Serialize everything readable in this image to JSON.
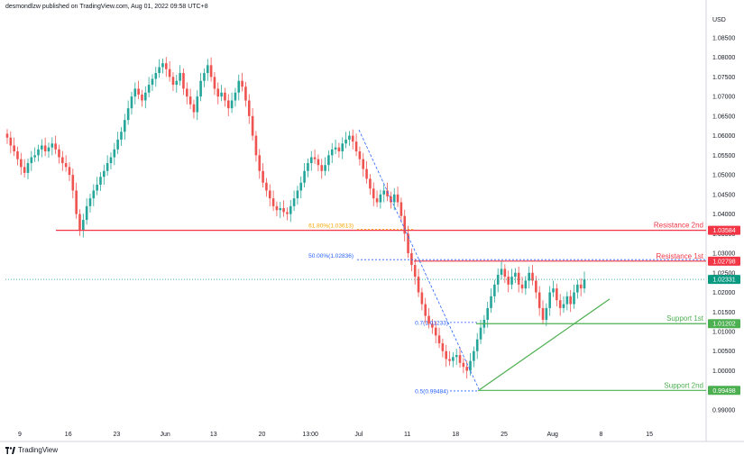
{
  "header": {
    "publisher_line": "desmondlzw published on TradingView.com, Aug 01, 2022 09:58 UTC+8"
  },
  "footer": {
    "brand": "TradingView"
  },
  "colors": {
    "up": "#26a69a",
    "down": "#ef5350",
    "resistance": "#f23645",
    "support": "#4caf50",
    "fib": "#2962ff",
    "fib618": "#f7a600",
    "current": "#089981"
  },
  "chart_data": {
    "type": "candlestick",
    "currency": "USD",
    "ylim": [
      0.987,
      1.0905
    ],
    "y_ticks": [
      "1.08500",
      "1.08000",
      "1.07500",
      "1.07000",
      "1.06500",
      "1.06000",
      "1.05500",
      "1.05000",
      "1.04500",
      "1.04000",
      "1.03500",
      "1.03000",
      "1.02500",
      "1.02000",
      "1.01500",
      "1.01000",
      "1.00500",
      "1.00000",
      "0.99500",
      "0.99000"
    ],
    "x_ticks": [
      "9",
      "16",
      "23",
      "Jun",
      "13",
      "20",
      "13:00",
      "Jul",
      "11",
      "18",
      "25",
      "Aug",
      "8",
      "15"
    ],
    "closes": [
      1.0595,
      1.0575,
      1.056,
      1.054,
      1.052,
      1.0505,
      1.053,
      1.0545,
      1.055,
      1.0565,
      1.0575,
      1.056,
      1.057,
      1.058,
      1.0565,
      1.0545,
      1.053,
      1.052,
      1.05,
      1.046,
      1.04,
      1.036,
      1.0385,
      1.042,
      1.044,
      1.046,
      1.0475,
      1.0495,
      1.051,
      1.053,
      1.0545,
      1.0565,
      1.059,
      1.061,
      1.064,
      1.067,
      1.07,
      1.072,
      1.0705,
      1.069,
      1.071,
      1.073,
      1.0745,
      1.076,
      1.0775,
      1.0785,
      1.077,
      1.075,
      1.073,
      1.074,
      1.076,
      1.072,
      1.07,
      1.068,
      1.066,
      1.07,
      1.074,
      1.076,
      1.078,
      1.075,
      1.072,
      1.07,
      1.071,
      1.069,
      1.067,
      1.069,
      1.071,
      1.074,
      1.0725,
      1.069,
      1.065,
      1.06,
      1.055,
      1.051,
      1.048,
      1.046,
      1.044,
      1.042,
      1.041,
      1.0415,
      1.0405,
      1.04,
      1.042,
      1.044,
      1.046,
      1.048,
      1.051,
      1.053,
      1.0545,
      1.054,
      1.0525,
      1.051,
      1.0525,
      1.055,
      1.0565,
      1.057,
      1.056,
      1.058,
      1.059,
      1.06,
      1.0585,
      1.056,
      1.054,
      1.0515,
      1.049,
      1.0465,
      1.044,
      1.043,
      1.045,
      1.046,
      1.0445,
      1.043,
      1.045,
      1.043,
      1.0395,
      1.035,
      1.03,
      1.027,
      1.024,
      1.02,
      1.017,
      1.014,
      1.012,
      1.011,
      1.009,
      1.007,
      1.005,
      1.003,
      1.0025,
      1.0035,
      1.004,
      1.002,
      1.001,
      1.0,
      1.0025,
      1.005,
      1.008,
      1.011,
      1.013,
      1.016,
      1.019,
      1.022,
      1.0245,
      1.026,
      1.024,
      1.022,
      1.024,
      1.025,
      1.022,
      1.021,
      1.023,
      1.025,
      1.023,
      1.02,
      1.016,
      1.013,
      1.016,
      1.02,
      1.021,
      1.018,
      1.016,
      1.017,
      1.019,
      1.017,
      1.02,
      1.022,
      1.021,
      1.0233
    ],
    "levels": [
      {
        "name": "Resistance 2nd",
        "value": 1.03584,
        "tag": "1.03584",
        "kind": "resistance"
      },
      {
        "name": "Resistance 1st",
        "value": 1.02798,
        "tag": "1.02798",
        "kind": "resistance"
      },
      {
        "name": "Support 1st",
        "value": 1.01202,
        "tag": "1.01202",
        "kind": "support"
      },
      {
        "name": "Support 2nd",
        "value": 0.99498,
        "tag": "0.99498",
        "kind": "support"
      }
    ],
    "current_price": {
      "value": 1.02331,
      "tag": "1.02331"
    },
    "fib_labels": [
      {
        "text": "61.80%(1.03613)",
        "value": 1.03613
      },
      {
        "text": "50.00%(1.02836)",
        "value": 1.02836
      },
      {
        "text": "0.7(1.01233)",
        "value": 1.01233
      },
      {
        "text": "0.5(0.99484)",
        "value": 0.99484
      }
    ]
  }
}
